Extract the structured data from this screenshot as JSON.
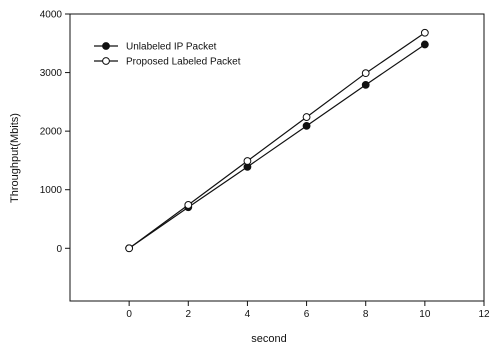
{
  "chart_data": {
    "type": "line",
    "title": "",
    "xlabel": "second",
    "ylabel": "Throughput(Mbits)",
    "xlim": [
      -2,
      12
    ],
    "ylim": [
      -900,
      4000
    ],
    "xticks": [
      0,
      2,
      4,
      6,
      8,
      10,
      12
    ],
    "yticks": [
      0,
      1000,
      2000,
      3000,
      4000
    ],
    "grid": false,
    "legend_position": "top-left",
    "series": [
      {
        "name": "Unlabeled IP Packet",
        "marker": "filled-circle",
        "color": "#111111",
        "x": [
          0,
          2,
          4,
          6,
          8,
          10
        ],
        "y": [
          0,
          700,
          1390,
          2090,
          2790,
          3480
        ]
      },
      {
        "name": "Proposed Labeled Packet",
        "marker": "open-circle",
        "color": "#111111",
        "x": [
          0,
          2,
          4,
          6,
          8,
          10
        ],
        "y": [
          0,
          740,
          1490,
          2240,
          2990,
          3680
        ]
      }
    ]
  }
}
